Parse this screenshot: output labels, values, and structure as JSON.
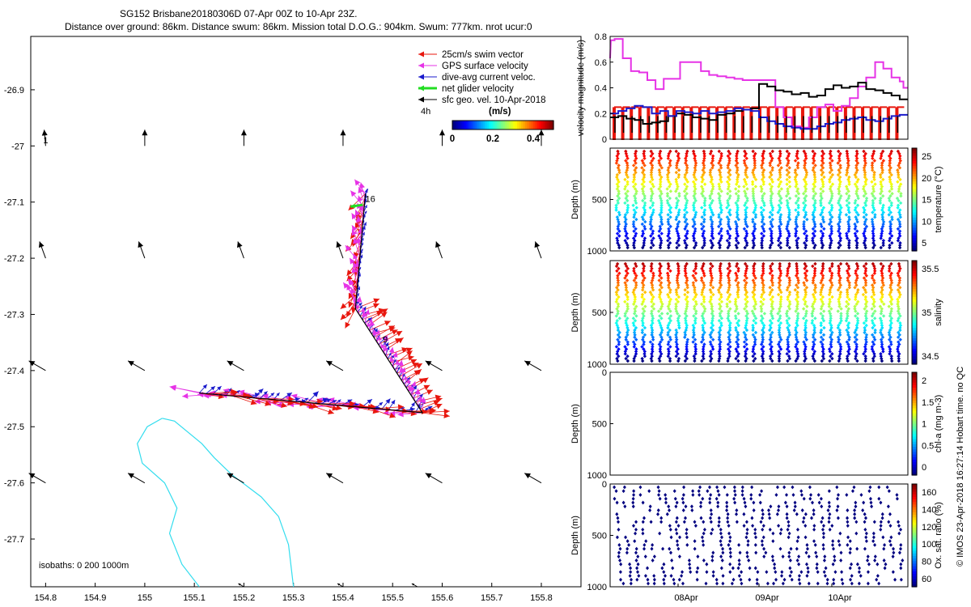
{
  "header": {
    "title_line1": "SG152 Brisbane20180306D 07-Apr 00Z to 10-Apr 23Z.",
    "title_line2": "Distance over ground: 86km. Distance swum: 86km. Mission total D.O.G.: 904km. Swum: 777km. nrot ucur:0"
  },
  "colors": {
    "swim": "#e8170e",
    "gps": "#e633e6",
    "current": "#1a1acc",
    "net": "#22dd22",
    "sfc": "#000000",
    "isobath": "#33ddee"
  },
  "chart_data": [
    {
      "type": "vector-map",
      "xlim": [
        154.77,
        155.88
      ],
      "ylim": [
        -27.785,
        -26.805
      ],
      "xticks": [
        "154.8",
        "154.9",
        "155",
        "155.1",
        "155.2",
        "155.3",
        "155.4",
        "155.5",
        "155.6",
        "155.7",
        "155.8"
      ],
      "yticks": [
        "-26.9",
        "-27",
        "-27.1",
        "-27.2",
        "-27.3",
        "-27.4",
        "-27.5",
        "-27.6",
        "-27.7"
      ],
      "legend": {
        "placement": "top-right",
        "entries": [
          "25cm/s swim vector",
          "GPS surface velocity",
          "dive-avg current veloc.",
          "net glider velocity",
          "sfc geo. vel. 10-Apr-2018"
        ]
      },
      "colorbar": {
        "label": "(m/s)",
        "interval_label": "4h",
        "ticks": [
          "0",
          "0.2",
          "0.4"
        ],
        "range": [
          0,
          0.5
        ]
      },
      "annotations": [
        {
          "text": "1",
          "lon": 154.795,
          "lat": -26.995
        },
        {
          "text": "9",
          "lon": 155.48,
          "lat": -27.35
        },
        {
          "text": "16",
          "lon": 155.445,
          "lat": -27.1
        }
      ],
      "isobath_label": "isobaths: 0   200   1000m",
      "track": [
        {
          "lon": 155.445,
          "lat": -27.085
        },
        {
          "lon": 155.425,
          "lat": -27.29
        },
        {
          "lon": 155.56,
          "lat": -27.475
        },
        {
          "lon": 155.11,
          "lat": -27.44
        }
      ],
      "isobath": [
        {
          "lon": 155.035,
          "lat": -27.485
        },
        {
          "lon": 155.06,
          "lat": -27.49
        },
        {
          "lon": 155.115,
          "lat": -27.53
        },
        {
          "lon": 155.14,
          "lat": -27.555
        },
        {
          "lon": 155.175,
          "lat": -27.585
        },
        {
          "lon": 155.235,
          "lat": -27.625
        },
        {
          "lon": 155.27,
          "lat": -27.66
        },
        {
          "lon": 155.29,
          "lat": -27.71
        },
        {
          "lon": 155.3,
          "lat": -27.785
        }
      ],
      "isobath2": [
        {
          "lon": 155.035,
          "lat": -27.485
        },
        {
          "lon": 155.005,
          "lat": -27.5
        },
        {
          "lon": 154.985,
          "lat": -27.53
        },
        {
          "lon": 154.995,
          "lat": -27.565
        },
        {
          "lon": 155.04,
          "lat": -27.6
        },
        {
          "lon": 155.065,
          "lat": -27.645
        },
        {
          "lon": 155.05,
          "lat": -27.69
        },
        {
          "lon": 155.075,
          "lat": -27.745
        },
        {
          "lon": 155.11,
          "lat": -27.785
        }
      ]
    },
    {
      "type": "line",
      "ylabel": "velocity magnitude (m/s)",
      "ylim": [
        0,
        0.8
      ],
      "yticks": [
        "0",
        "0.2",
        "0.4",
        "0.6",
        "0.8"
      ],
      "xlim": [
        0,
        4
      ],
      "series": [
        {
          "color": "#e633e6",
          "x": [
            0,
            0.01,
            0.06,
            0.06,
            0.17,
            0.17,
            0.28,
            0.28,
            0.39,
            0.39,
            0.5,
            0.5,
            0.61,
            0.61,
            0.72,
            0.72,
            0.94,
            0.94,
            1.22,
            1.22,
            1.33,
            1.33,
            1.44,
            1.44,
            1.56,
            1.56,
            1.67,
            1.67,
            1.78,
            1.78,
            2.22,
            2.22,
            2.33,
            2.33,
            2.44,
            2.44,
            2.56,
            2.56,
            2.67,
            2.67,
            2.78,
            2.78,
            2.89,
            2.89,
            3.0,
            3.0,
            3.11,
            3.11,
            3.22,
            3.22,
            3.33,
            3.33,
            3.44,
            3.44,
            3.56,
            3.56,
            3.67,
            3.67,
            3.78,
            3.78,
            3.89,
            3.89,
            3.94,
            3.94,
            4.0
          ],
          "values": [
            0.63,
            0.77,
            0.77,
            0.78,
            0.78,
            0.63,
            0.63,
            0.53,
            0.53,
            0.52,
            0.52,
            0.46,
            0.46,
            0.39,
            0.39,
            0.47,
            0.47,
            0.6,
            0.6,
            0.53,
            0.53,
            0.5,
            0.5,
            0.49,
            0.49,
            0.48,
            0.48,
            0.47,
            0.47,
            0.46,
            0.46,
            0.25,
            0.25,
            0.17,
            0.17,
            0.1,
            0.1,
            0.09,
            0.09,
            0.17,
            0.17,
            0.25,
            0.25,
            0.27,
            0.27,
            0.22,
            0.22,
            0.26,
            0.26,
            0.32,
            0.32,
            0.41,
            0.41,
            0.48,
            0.48,
            0.6,
            0.6,
            0.55,
            0.55,
            0.48,
            0.48,
            0.45,
            0.45,
            0.4,
            0.4
          ]
        },
        {
          "color": "#000000",
          "x": [
            0,
            0.11,
            0.11,
            0.22,
            0.22,
            0.33,
            0.33,
            0.44,
            0.44,
            0.56,
            0.56,
            0.67,
            0.67,
            0.78,
            0.78,
            0.89,
            0.89,
            1.0,
            1.0,
            1.11,
            1.11,
            1.22,
            1.22,
            1.33,
            1.33,
            1.44,
            1.44,
            1.56,
            1.56,
            1.67,
            1.67,
            1.78,
            1.78,
            1.89,
            1.89,
            2.0,
            2.0,
            2.11,
            2.11,
            2.22,
            2.22,
            2.33,
            2.33,
            2.44,
            2.44,
            2.56,
            2.56,
            2.67,
            2.67,
            2.78,
            2.78,
            2.89,
            2.89,
            3.0,
            3.0,
            3.11,
            3.11,
            3.22,
            3.22,
            3.33,
            3.33,
            3.44,
            3.44,
            3.56,
            3.56,
            3.67,
            3.67,
            3.78,
            3.78,
            3.89,
            3.89,
            4.0
          ],
          "values": [
            0.17,
            0.17,
            0.18,
            0.18,
            0.16,
            0.16,
            0.15,
            0.15,
            0.12,
            0.12,
            0.13,
            0.13,
            0.14,
            0.14,
            0.18,
            0.18,
            0.2,
            0.2,
            0.19,
            0.19,
            0.17,
            0.17,
            0.16,
            0.16,
            0.15,
            0.15,
            0.19,
            0.19,
            0.2,
            0.2,
            0.22,
            0.22,
            0.23,
            0.23,
            0.24,
            0.24,
            0.43,
            0.43,
            0.41,
            0.41,
            0.38,
            0.38,
            0.37,
            0.37,
            0.35,
            0.35,
            0.36,
            0.36,
            0.33,
            0.33,
            0.34,
            0.34,
            0.39,
            0.39,
            0.42,
            0.42,
            0.4,
            0.4,
            0.41,
            0.41,
            0.44,
            0.44,
            0.39,
            0.39,
            0.38,
            0.38,
            0.36,
            0.36,
            0.34,
            0.34,
            0.31,
            0.31
          ]
        },
        {
          "color": "#1a1acc",
          "x": [
            0,
            0.11,
            0.11,
            0.22,
            0.22,
            0.33,
            0.33,
            0.44,
            0.44,
            0.56,
            0.56,
            0.67,
            0.67,
            0.78,
            0.78,
            0.89,
            0.89,
            1.0,
            1.0,
            1.11,
            1.11,
            1.22,
            1.22,
            1.33,
            1.33,
            1.44,
            1.44,
            1.56,
            1.56,
            1.67,
            1.67,
            1.78,
            1.78,
            1.89,
            1.89,
            2.0,
            2.0,
            2.11,
            2.11,
            2.22,
            2.22,
            2.33,
            2.33,
            2.44,
            2.44,
            2.56,
            2.56,
            2.67,
            2.67,
            2.78,
            2.78,
            2.89,
            2.89,
            3.0,
            3.0,
            3.11,
            3.11,
            3.22,
            3.22,
            3.33,
            3.33,
            3.44,
            3.44,
            3.56,
            3.56,
            3.67,
            3.67,
            3.78,
            3.78,
            3.89,
            3.89,
            4.0
          ],
          "values": [
            0.2,
            0.2,
            0.22,
            0.22,
            0.24,
            0.24,
            0.26,
            0.26,
            0.25,
            0.25,
            0.2,
            0.2,
            0.22,
            0.22,
            0.18,
            0.18,
            0.22,
            0.22,
            0.21,
            0.21,
            0.2,
            0.2,
            0.22,
            0.22,
            0.2,
            0.2,
            0.21,
            0.21,
            0.22,
            0.22,
            0.24,
            0.24,
            0.23,
            0.23,
            0.22,
            0.22,
            0.17,
            0.17,
            0.14,
            0.14,
            0.12,
            0.12,
            0.1,
            0.1,
            0.09,
            0.09,
            0.08,
            0.08,
            0.08,
            0.08,
            0.1,
            0.1,
            0.12,
            0.12,
            0.13,
            0.13,
            0.15,
            0.15,
            0.16,
            0.16,
            0.17,
            0.17,
            0.15,
            0.15,
            0.14,
            0.14,
            0.16,
            0.16,
            0.18,
            0.18,
            0.19,
            0.19
          ]
        }
      ],
      "swim_level": 0.25,
      "swim_color": "#e8170e",
      "dives": 34
    },
    {
      "type": "section",
      "ylabel": "Depth (m)",
      "ylim": [
        0,
        1000
      ],
      "yticks": [
        "",
        "500",
        "1000"
      ],
      "colorbar_label": "temperature (°C)",
      "colorbar_ticks": [
        "25",
        "20",
        "15",
        "10",
        "5"
      ],
      "dives": 34
    },
    {
      "type": "section",
      "ylabel": "Depth (m)",
      "ylim": [
        0,
        1000
      ],
      "yticks": [
        "",
        "500",
        "1000"
      ],
      "colorbar_label": "salinity",
      "colorbar_ticks": [
        "35.5",
        "35",
        "34.5"
      ],
      "dives": 34
    },
    {
      "type": "section",
      "ylabel": "Depth (m)",
      "ylim": [
        0,
        1000
      ],
      "yticks": [
        "0",
        "500",
        "1000"
      ],
      "colorbar_label": "chl-a (mg m-3)",
      "colorbar_ticks": [
        "2",
        "1.5",
        "1",
        "0.5",
        "0"
      ],
      "dives": 0
    },
    {
      "type": "scatter",
      "ylabel": "Depth (m)",
      "ylim": [
        0,
        1000
      ],
      "yticks": [
        "0",
        "500",
        "1000"
      ],
      "colorbar_label": "Ox. sat. ratio (%)",
      "colorbar_ticks": [
        "160",
        "140",
        "120",
        "100",
        "80",
        "60"
      ],
      "xticks": [
        "08Apr",
        "09Apr",
        "10Apr"
      ],
      "dives": 34
    }
  ],
  "credit": "© IMOS 23-Apr-2018 16:27:14 Hobart time. no QC"
}
